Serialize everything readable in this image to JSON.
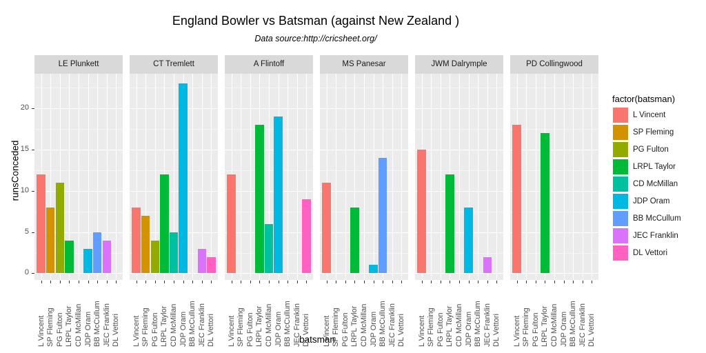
{
  "chart_data": {
    "type": "bar",
    "title": "England Bowler vs Batsman (against New Zealand )",
    "subtitle": "Data source:http://cricsheet.org/",
    "xlabel": "batsman",
    "ylabel": "runsConceded",
    "ylim": [
      -0.8,
      24.2
    ],
    "yticks": [
      0,
      5,
      10,
      15,
      20
    ],
    "grid": true,
    "legend_title": "factor(batsman)",
    "legend_position": "right",
    "categories": [
      "L Vincent",
      "SP Fleming",
      "PG Fulton",
      "LRPL Taylor",
      "CD McMillan",
      "JDP Oram",
      "BB McCullum",
      "JEC Franklin",
      "DL Vettori"
    ],
    "colors": [
      "#F8766D",
      "#D39200",
      "#93AA00",
      "#00BA38",
      "#00C19F",
      "#00B9E3",
      "#619CFF",
      "#DB72FB",
      "#FF61C3"
    ],
    "facets": [
      {
        "bowler": "LE Plunkett",
        "values": [
          12,
          8,
          11,
          4,
          null,
          3,
          5,
          4,
          null
        ]
      },
      {
        "bowler": "CT Tremlett",
        "values": [
          8,
          7,
          4,
          12,
          5,
          23,
          null,
          3,
          2
        ]
      },
      {
        "bowler": "A Flintoff",
        "values": [
          12,
          null,
          null,
          18,
          6,
          19,
          null,
          null,
          9
        ]
      },
      {
        "bowler": "MS Panesar",
        "values": [
          11,
          null,
          null,
          8,
          null,
          1,
          14,
          null,
          null
        ]
      },
      {
        "bowler": "JWM Dalrymple",
        "values": [
          15,
          null,
          null,
          12,
          null,
          8,
          null,
          2,
          null
        ]
      },
      {
        "bowler": "PD Collingwood",
        "values": [
          18,
          null,
          null,
          17,
          null,
          null,
          null,
          null,
          null
        ]
      }
    ]
  }
}
